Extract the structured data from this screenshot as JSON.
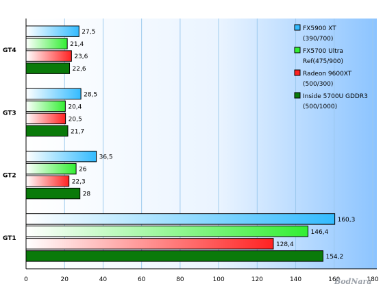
{
  "chart_data": {
    "type": "bar",
    "orientation": "horizontal",
    "categories": [
      "GT4",
      "GT3",
      "GT2",
      "GT1"
    ],
    "series": [
      {
        "name_lines": [
          "FX5900 XT",
          "(390/700)"
        ],
        "color": "#33bbff",
        "values": [
          27.5,
          28.5,
          36.5,
          160.3
        ],
        "labels": [
          "27,5",
          "28,5",
          "36,5",
          "160,3"
        ]
      },
      {
        "name_lines": [
          "FX5700 Ultra",
          "Ref(475/900)"
        ],
        "color": "#33ee33",
        "values": [
          21.4,
          20.4,
          26,
          146.4
        ],
        "labels": [
          "21,4",
          "20,4",
          "26",
          "146,4"
        ]
      },
      {
        "name_lines": [
          "Radeon 9600XT",
          "(500/300)"
        ],
        "color": "#ff2222",
        "values": [
          23.6,
          20.5,
          22.3,
          128.4
        ],
        "labels": [
          "23,6",
          "20,5",
          "22,3",
          "128,4"
        ]
      },
      {
        "name_lines": [
          "Inside 5700U GDDR3",
          "(500/1000)"
        ],
        "color": "#0a7a0a",
        "values": [
          22.6,
          21.7,
          28,
          154.2
        ],
        "labels": [
          "22,6",
          "21,7",
          "28",
          "154,2"
        ]
      }
    ],
    "xlim": [
      0,
      180
    ],
    "xticks": [
      "0",
      "20",
      "40",
      "60",
      "80",
      "100",
      "120",
      "140",
      "160",
      "180"
    ],
    "grid": true,
    "legend": "top-right"
  },
  "watermark": "BodNara"
}
